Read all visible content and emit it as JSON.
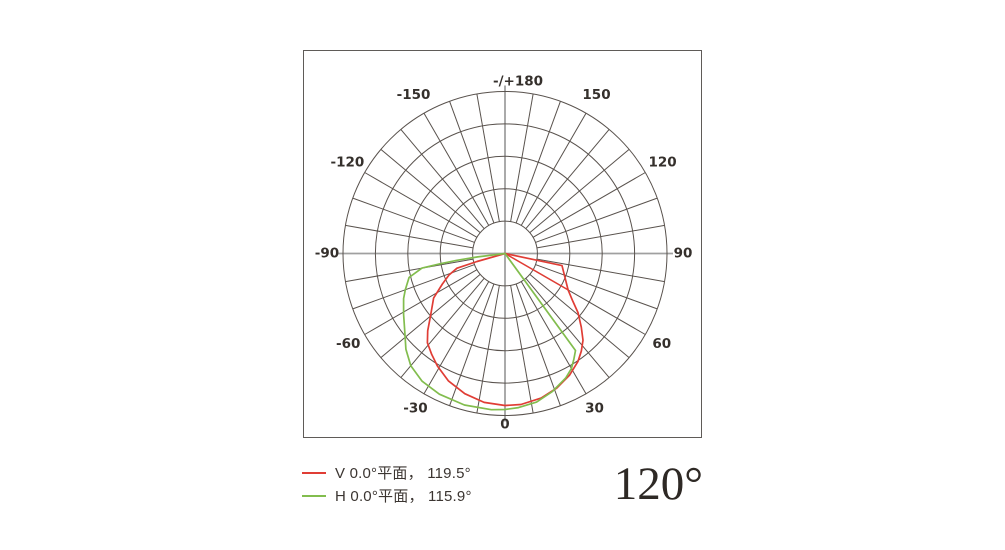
{
  "figure": {
    "frame_color": "#5f5b58",
    "grid_color": "#59524d",
    "axis_color": "#a0a0a0",
    "label_color": "#35302c",
    "background": "#ffffff"
  },
  "chart_data": {
    "type": "line",
    "subtype": "polar-photometric-distribution",
    "title": "",
    "angle_unit": "degrees",
    "orientation": "0 at bottom, -/+180 at top, positive angles on right side, negative on left",
    "radial_axis": "relative luminous intensity, 0 at center to 1.0 at outer ring",
    "grid": {
      "rings": 5,
      "spoke_step_deg": 10,
      "label_step_deg": 30,
      "inner_ring_fraction": 0.2
    },
    "angle_labels": [
      {
        "angle": 180,
        "text": "-/+180"
      },
      {
        "angle": -150,
        "text": "-150"
      },
      {
        "angle": 150,
        "text": "150"
      },
      {
        "angle": -120,
        "text": "-120"
      },
      {
        "angle": 120,
        "text": "120"
      },
      {
        "angle": -90,
        "text": "-90"
      },
      {
        "angle": 90,
        "text": "90"
      },
      {
        "angle": -60,
        "text": "-60"
      },
      {
        "angle": 60,
        "text": "60"
      },
      {
        "angle": -30,
        "text": "-30"
      },
      {
        "angle": 30,
        "text": "30"
      },
      {
        "angle": 0,
        "text": "0"
      }
    ],
    "series": [
      {
        "name": "V 0.0°平面",
        "beam_angle_deg": 119.5,
        "color": "#e03d35",
        "points": [
          [
            79,
            0
          ],
          [
            78,
            0.36
          ],
          [
            60,
            0.45
          ],
          [
            55,
            0.51
          ],
          [
            51,
            0.58
          ],
          [
            46,
            0.655
          ],
          [
            42,
            0.72
          ],
          [
            38,
            0.765
          ],
          [
            34,
            0.805
          ],
          [
            28,
            0.85
          ],
          [
            21,
            0.89
          ],
          [
            14,
            0.92
          ],
          [
            6,
            0.937
          ],
          [
            0,
            0.938
          ],
          [
            -8,
            0.928
          ],
          [
            -16,
            0.9
          ],
          [
            -24,
            0.86
          ],
          [
            -31,
            0.81
          ],
          [
            -36,
            0.77
          ],
          [
            -41,
            0.73
          ],
          [
            -45,
            0.675
          ],
          [
            -50,
            0.6
          ],
          [
            -58,
            0.52
          ],
          [
            -64,
            0.43
          ],
          [
            -69,
            0.37
          ],
          [
            -73,
            0.31
          ],
          [
            -74,
            0.18
          ],
          [
            -76,
            0
          ]
        ],
        "spur": [
          [
            60,
            0
          ],
          [
            60,
            0.45
          ]
        ]
      },
      {
        "name": "H 0.0°平面",
        "beam_angle_deg": 115.9,
        "color": "#82bd4e",
        "points": [
          [
            -84,
            0
          ],
          [
            -83,
            0.17
          ],
          [
            -82,
            0.3
          ],
          [
            -81,
            0.41
          ],
          [
            -80,
            0.52
          ],
          [
            -76,
            0.61
          ],
          [
            -70,
            0.655
          ],
          [
            -66,
            0.685
          ],
          [
            -59,
            0.73
          ],
          [
            -52,
            0.785
          ],
          [
            -46,
            0.85
          ],
          [
            -40,
            0.905
          ],
          [
            -33,
            0.94
          ],
          [
            -25,
            0.958
          ],
          [
            -15,
            0.968
          ],
          [
            -5,
            0.968
          ],
          [
            0,
            0.963
          ],
          [
            5,
            0.955
          ],
          [
            12,
            0.938
          ],
          [
            19,
            0.9
          ],
          [
            26,
            0.855
          ],
          [
            30,
            0.82
          ],
          [
            33,
            0.78
          ],
          [
            36,
            0.74
          ],
          [
            36,
            0
          ]
        ],
        "spur": []
      }
    ]
  },
  "legend": {
    "items": [
      {
        "label": "V 0.0°平面， 119.5°",
        "color": "#e03d35"
      },
      {
        "label": "H 0.0°平面， 115.9°",
        "color": "#82bd4e"
      }
    ]
  },
  "footer": {
    "beam_angle": "120°"
  }
}
